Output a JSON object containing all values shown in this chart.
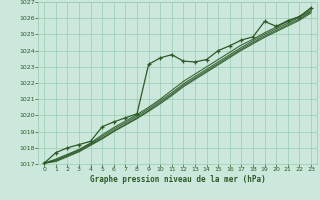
{
  "bg_color": "#cce8dc",
  "grid_color": "#99ccb3",
  "line_color": "#2d5a27",
  "marker_color": "#2d5a27",
  "xlabel": "Graphe pression niveau de la mer (hPa)",
  "xlabel_color": "#2d5a27",
  "ylabel_color": "#2d5a27",
  "xlim": [
    -0.5,
    23.5
  ],
  "ylim": [
    1017,
    1027
  ],
  "yticks": [
    1017,
    1018,
    1019,
    1020,
    1021,
    1022,
    1023,
    1024,
    1025,
    1026,
    1027
  ],
  "xticks": [
    0,
    1,
    2,
    3,
    4,
    5,
    6,
    7,
    8,
    9,
    10,
    11,
    12,
    13,
    14,
    15,
    16,
    17,
    18,
    19,
    20,
    21,
    22,
    23
  ],
  "series1_marked": {
    "x": [
      0,
      1,
      2,
      3,
      4,
      5,
      6,
      7,
      8,
      9,
      10,
      11,
      12,
      13,
      14,
      15,
      16,
      17,
      18,
      19,
      20,
      21,
      22,
      23
    ],
    "y": [
      1017.05,
      1017.7,
      1018.0,
      1018.2,
      1018.4,
      1019.3,
      1019.6,
      1019.85,
      1020.1,
      1023.15,
      1023.55,
      1023.75,
      1023.35,
      1023.3,
      1023.45,
      1024.0,
      1024.3,
      1024.65,
      1024.85,
      1025.8,
      1025.5,
      1025.85,
      1026.1,
      1026.65
    ]
  },
  "series2": {
    "x": [
      0,
      1,
      2,
      3,
      4,
      5,
      6,
      7,
      8,
      9,
      10,
      11,
      12,
      13,
      14,
      15,
      16,
      17,
      18,
      19,
      20,
      21,
      22,
      23
    ],
    "y": [
      1017.05,
      1017.3,
      1017.6,
      1017.9,
      1018.3,
      1018.8,
      1019.25,
      1019.65,
      1020.05,
      1020.5,
      1021.0,
      1021.55,
      1022.1,
      1022.55,
      1023.0,
      1023.45,
      1023.9,
      1024.35,
      1024.7,
      1025.1,
      1025.45,
      1025.8,
      1026.1,
      1026.55
    ]
  },
  "series3": {
    "x": [
      0,
      1,
      2,
      3,
      4,
      5,
      6,
      7,
      8,
      9,
      10,
      11,
      12,
      13,
      14,
      15,
      16,
      17,
      18,
      19,
      20,
      21,
      22,
      23
    ],
    "y": [
      1017.05,
      1017.25,
      1017.55,
      1017.85,
      1018.25,
      1018.7,
      1019.15,
      1019.55,
      1019.95,
      1020.4,
      1020.9,
      1021.4,
      1021.95,
      1022.4,
      1022.85,
      1023.3,
      1023.75,
      1024.2,
      1024.6,
      1025.0,
      1025.35,
      1025.7,
      1026.05,
      1026.45
    ]
  },
  "series4": {
    "x": [
      0,
      1,
      2,
      3,
      4,
      5,
      6,
      7,
      8,
      9,
      10,
      11,
      12,
      13,
      14,
      15,
      16,
      17,
      18,
      19,
      20,
      21,
      22,
      23
    ],
    "y": [
      1017.05,
      1017.2,
      1017.5,
      1017.8,
      1018.2,
      1018.6,
      1019.05,
      1019.45,
      1019.85,
      1020.3,
      1020.8,
      1021.3,
      1021.85,
      1022.3,
      1022.75,
      1023.2,
      1023.65,
      1024.1,
      1024.5,
      1024.9,
      1025.25,
      1025.6,
      1025.95,
      1026.4
    ]
  },
  "series5": {
    "x": [
      0,
      1,
      2,
      3,
      4,
      5,
      6,
      7,
      8,
      9,
      10,
      11,
      12,
      13,
      14,
      15,
      16,
      17,
      18,
      19,
      20,
      21,
      22,
      23
    ],
    "y": [
      1017.05,
      1017.15,
      1017.45,
      1017.75,
      1018.15,
      1018.55,
      1019.0,
      1019.4,
      1019.8,
      1020.25,
      1020.72,
      1021.22,
      1021.77,
      1022.22,
      1022.67,
      1023.12,
      1023.57,
      1024.02,
      1024.42,
      1024.82,
      1025.17,
      1025.52,
      1025.87,
      1026.32
    ]
  }
}
